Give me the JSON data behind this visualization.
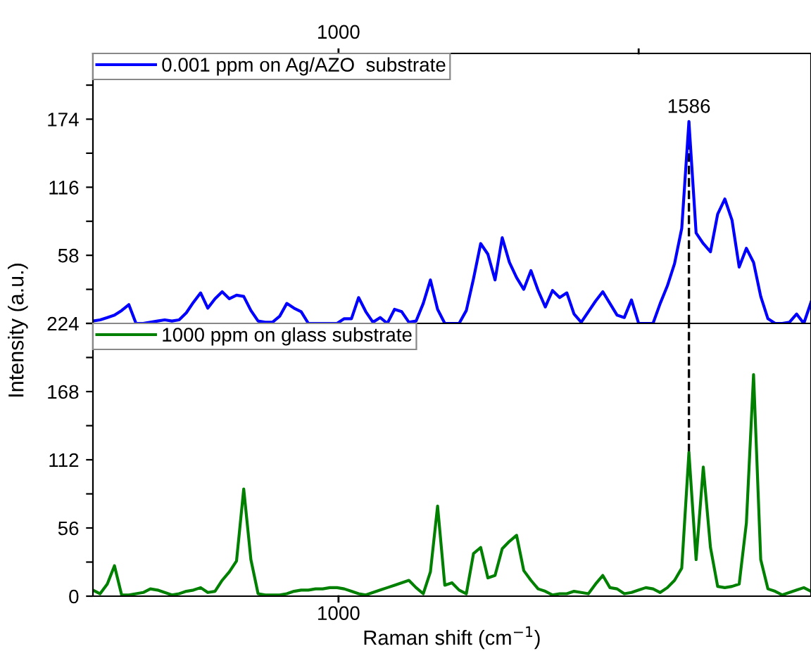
{
  "chart_data": [
    {
      "type": "line",
      "categories": [
        null,
        null,
        null,
        null,
        null,
        null,
        null,
        null,
        null,
        null,
        null,
        null,
        null,
        null,
        null,
        null,
        null,
        null,
        null,
        null,
        null,
        null,
        null,
        null,
        null,
        null,
        null,
        null,
        null,
        null,
        null,
        null,
        null,
        null,
        null,
        null,
        null,
        null,
        null,
        null,
        null,
        null,
        null,
        null,
        null,
        null,
        null,
        null,
        null,
        null,
        null,
        null,
        null,
        null,
        null,
        null,
        null,
        null,
        null,
        null,
        null,
        null,
        null,
        null,
        null,
        null,
        null,
        null,
        null,
        null,
        null,
        null,
        null,
        null,
        null,
        null,
        null,
        null,
        null,
        null,
        null,
        null,
        null,
        null,
        null,
        null,
        null,
        null,
        null,
        null,
        null,
        null,
        null,
        null,
        null,
        null,
        null,
        null,
        null,
        null,
        null
      ],
      "ylim": [
        0,
        230
      ],
      "yticks": [
        {
          "value": 0,
          "label": null
        },
        {
          "value": 29,
          "label": null
        },
        58,
        {
          "value": 87,
          "label": null
        },
        116,
        {
          "value": 145,
          "label": null
        },
        174,
        {
          "value": 203,
          "label": null
        }
      ],
      "legend": "top left",
      "annotations": [
        "1000",
        "1586"
      ],
      "series": [
        {
          "name": "0.001 ppm on Ag/AZO  substrate",
          "color": "#0000ff",
          "values": [
            2,
            3,
            5,
            7,
            11,
            16,
            0,
            0,
            1,
            2,
            3,
            2,
            3,
            9,
            18,
            26,
            13,
            21,
            27,
            21,
            24,
            23,
            11,
            2,
            1,
            1,
            6,
            17,
            13,
            10,
            0,
            0,
            0,
            0,
            0,
            4,
            4,
            22,
            10,
            1,
            5,
            0,
            12,
            10,
            1,
            2,
            17,
            37,
            12,
            0,
            0,
            0,
            11,
            38,
            68,
            59,
            37,
            73,
            52,
            39,
            29,
            45,
            28,
            14,
            28,
            22,
            26,
            8,
            1,
            10,
            19,
            27,
            17,
            7,
            5,
            20,
            0,
            0,
            0,
            17,
            32,
            51,
            81,
            172,
            77,
            68,
            61,
            93,
            106,
            88,
            48,
            64,
            52,
            23,
            4,
            0,
            0,
            1,
            8,
            0,
            18
          ]
        }
      ]
    },
    {
      "type": "line",
      "categories": [
        null,
        null,
        null,
        null,
        null,
        null,
        null,
        null,
        null,
        null,
        null,
        null,
        null,
        null,
        null,
        null,
        null,
        null,
        null,
        null,
        null,
        null,
        null,
        null,
        null,
        null,
        null,
        null,
        null,
        null,
        null,
        null,
        null,
        null,
        null,
        null,
        null,
        null,
        null,
        null,
        null,
        null,
        null,
        null,
        null,
        null,
        null,
        null,
        null,
        null,
        null,
        null,
        null,
        null,
        null,
        null,
        null,
        null,
        null,
        null,
        null,
        null,
        null,
        null,
        null,
        null,
        null,
        null,
        null,
        null,
        null,
        null,
        null,
        null,
        null,
        null,
        null,
        null,
        null,
        null,
        null,
        null,
        null,
        null,
        null,
        null,
        null,
        null,
        null,
        null,
        null,
        null,
        null,
        null,
        null,
        null,
        null,
        null,
        null,
        null,
        null
      ],
      "ylim": [
        0,
        224
      ],
      "yticks": [
        0,
        {
          "value": 28,
          "label": null
        },
        56,
        {
          "value": 84,
          "label": null
        },
        112,
        {
          "value": 140,
          "label": null
        },
        168,
        {
          "value": 196,
          "label": null
        },
        224
      ],
      "xlabel": "Raman shift (cm$^{−1}$)",
      "ylabel": "Intensity (a.u.)",
      "legend": "top left",
      "annotations": [
        "1000"
      ],
      "series": [
        {
          "name": "1000 ppm on glass substrate",
          "color": "#008000",
          "values": [
            5,
            2,
            10,
            25,
            1,
            1,
            2,
            3,
            6,
            5,
            3,
            1,
            2,
            4,
            5,
            7,
            3,
            4,
            13,
            20,
            29,
            88,
            30,
            2,
            1,
            1,
            1,
            2,
            4,
            5,
            5,
            6,
            6,
            7,
            7,
            6,
            4,
            2,
            1,
            3,
            5,
            7,
            9,
            11,
            13,
            7,
            2,
            20,
            74,
            9,
            11,
            5,
            2,
            35,
            40,
            15,
            17,
            39,
            45,
            50,
            21,
            13,
            6,
            4,
            1,
            2,
            2,
            4,
            3,
            2,
            10,
            17,
            7,
            6,
            2,
            3,
            5,
            7,
            6,
            3,
            7,
            13,
            23,
            118,
            30,
            106,
            40,
            8,
            7,
            8,
            10,
            60,
            182,
            30,
            6,
            4,
            1,
            3,
            5,
            7,
            4
          ]
        }
      ]
    }
  ]
}
